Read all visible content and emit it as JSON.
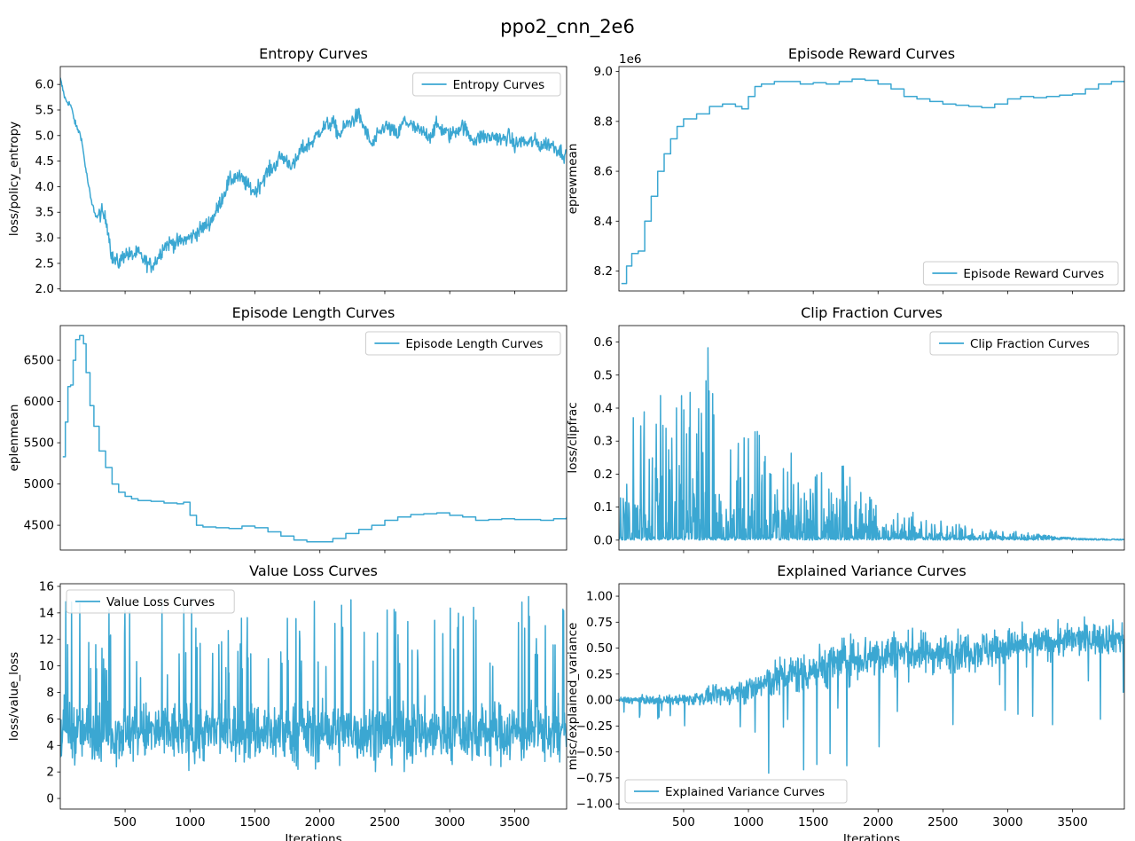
{
  "figure": {
    "suptitle": "ppo2_cnn_2e6"
  },
  "colors": {
    "series": "#3ba7d2",
    "axes": "#000000",
    "legend_border": "#cccccc",
    "background": "#ffffff"
  },
  "chart_data": [
    {
      "type": "line",
      "title": "Entropy Curves",
      "xlabel": "",
      "ylabel": "loss/policy_entropy",
      "xlim": [
        1,
        3900
      ],
      "ylim": [
        1.96,
        6.35
      ],
      "yticks": [
        2.0,
        2.5,
        3.0,
        3.5,
        4.0,
        4.5,
        5.0,
        5.5,
        6.0
      ],
      "ytick_labels": [
        "2.0",
        "2.5",
        "3.0",
        "3.5",
        "4.0",
        "4.5",
        "5.0",
        "5.5",
        "6.0"
      ],
      "xticks": [
        500,
        1000,
        1500,
        2000,
        2500,
        3000,
        3500
      ],
      "show_xtick_labels": false,
      "legend": {
        "text": "Entropy Curves",
        "position": "upper right"
      },
      "series": [
        {
          "name": "Entropy Curves",
          "x": [
            1,
            40,
            80,
            120,
            160,
            200,
            240,
            280,
            320,
            360,
            400,
            450,
            500,
            550,
            600,
            650,
            700,
            750,
            800,
            850,
            900,
            950,
            1000,
            1050,
            1100,
            1150,
            1200,
            1250,
            1300,
            1350,
            1400,
            1450,
            1500,
            1550,
            1600,
            1650,
            1700,
            1750,
            1800,
            1850,
            1900,
            1950,
            2000,
            2050,
            2100,
            2150,
            2200,
            2250,
            2300,
            2350,
            2400,
            2450,
            2500,
            2550,
            2600,
            2650,
            2700,
            2750,
            2800,
            2850,
            2900,
            2950,
            3000,
            3050,
            3100,
            3150,
            3200,
            3250,
            3300,
            3350,
            3400,
            3450,
            3500,
            3550,
            3600,
            3650,
            3700,
            3750,
            3800,
            3850,
            3900
          ],
          "y": [
            6.1,
            5.7,
            5.6,
            5.2,
            5.0,
            4.3,
            3.7,
            3.4,
            3.5,
            3.3,
            2.6,
            2.5,
            2.7,
            2.65,
            2.7,
            2.55,
            2.45,
            2.6,
            2.85,
            2.9,
            2.9,
            2.95,
            3.0,
            3.1,
            3.2,
            3.3,
            3.5,
            3.8,
            4.1,
            4.2,
            4.15,
            4.0,
            3.9,
            4.1,
            4.3,
            4.4,
            4.6,
            4.5,
            4.4,
            4.7,
            4.8,
            4.9,
            5.1,
            5.2,
            5.25,
            5.0,
            5.2,
            5.3,
            5.4,
            5.1,
            4.8,
            5.0,
            5.2,
            5.1,
            5.0,
            5.3,
            5.2,
            5.1,
            5.05,
            5.0,
            5.2,
            5.1,
            5.0,
            5.1,
            5.2,
            5.0,
            4.9,
            5.0,
            4.95,
            5.0,
            4.9,
            5.0,
            4.8,
            4.9,
            4.85,
            4.9,
            4.8,
            4.85,
            4.8,
            4.7,
            4.6
          ],
          "noise": 0.3
        }
      ]
    },
    {
      "type": "line",
      "title": "Episode Reward Curves",
      "xlabel": "",
      "ylabel": "eprewmean",
      "y_offset_label": "1e6",
      "xlim": [
        1,
        3900
      ],
      "ylim": [
        8.12,
        9.02
      ],
      "yticks": [
        8.2,
        8.4,
        8.6,
        8.8,
        9.0
      ],
      "ytick_labels": [
        "8.2",
        "8.4",
        "8.6",
        "8.8",
        "9.0"
      ],
      "xticks": [
        500,
        1000,
        1500,
        2000,
        2500,
        3000,
        3500
      ],
      "show_xtick_labels": false,
      "legend": {
        "text": "Episode Reward Curves",
        "position": "lower right"
      },
      "series": [
        {
          "name": "Episode Reward Curves",
          "x": [
            20,
            60,
            100,
            150,
            200,
            250,
            300,
            350,
            400,
            450,
            500,
            600,
            700,
            800,
            900,
            950,
            1000,
            1050,
            1100,
            1200,
            1300,
            1400,
            1500,
            1600,
            1700,
            1800,
            1900,
            2000,
            2100,
            2200,
            2300,
            2400,
            2500,
            2600,
            2700,
            2800,
            2900,
            3000,
            3100,
            3200,
            3300,
            3400,
            3500,
            3600,
            3700,
            3800,
            3900
          ],
          "y": [
            8.15,
            8.22,
            8.27,
            8.28,
            8.4,
            8.5,
            8.6,
            8.67,
            8.73,
            8.78,
            8.81,
            8.83,
            8.86,
            8.87,
            8.86,
            8.85,
            8.9,
            8.94,
            8.95,
            8.96,
            8.96,
            8.95,
            8.955,
            8.95,
            8.96,
            8.97,
            8.965,
            8.95,
            8.93,
            8.9,
            8.89,
            8.88,
            8.87,
            8.865,
            8.86,
            8.855,
            8.87,
            8.89,
            8.9,
            8.895,
            8.9,
            8.905,
            8.91,
            8.93,
            8.95,
            8.96,
            8.96
          ],
          "step": true
        }
      ]
    },
    {
      "type": "line",
      "title": "Episode Length Curves",
      "xlabel": "",
      "ylabel": "eplenmean",
      "xlim": [
        1,
        3900
      ],
      "ylim": [
        4200,
        6920
      ],
      "yticks": [
        4500,
        5000,
        5500,
        6000,
        6500
      ],
      "ytick_labels": [
        "4500",
        "5000",
        "5500",
        "6000",
        "6500"
      ],
      "xticks": [
        500,
        1000,
        1500,
        2000,
        2500,
        3000,
        3500
      ],
      "show_xtick_labels": false,
      "legend": {
        "text": "Episode Length Curves",
        "position": "upper right"
      },
      "series": [
        {
          "name": "Episode Length Curves",
          "x": [
            20,
            40,
            60,
            80,
            100,
            120,
            150,
            180,
            200,
            230,
            260,
            300,
            350,
            400,
            450,
            500,
            550,
            600,
            700,
            800,
            900,
            950,
            1000,
            1050,
            1100,
            1200,
            1300,
            1400,
            1500,
            1600,
            1700,
            1800,
            1900,
            2000,
            2100,
            2200,
            2300,
            2400,
            2500,
            2600,
            2700,
            2800,
            2900,
            3000,
            3100,
            3200,
            3300,
            3400,
            3500,
            3600,
            3700,
            3800,
            3900
          ],
          "y": [
            5330,
            5750,
            6180,
            6200,
            6500,
            6750,
            6800,
            6700,
            6350,
            5950,
            5700,
            5400,
            5200,
            5000,
            4900,
            4850,
            4820,
            4800,
            4790,
            4770,
            4760,
            4780,
            4620,
            4500,
            4480,
            4470,
            4460,
            4490,
            4470,
            4420,
            4370,
            4320,
            4300,
            4300,
            4340,
            4400,
            4450,
            4500,
            4560,
            4600,
            4630,
            4640,
            4650,
            4620,
            4600,
            4560,
            4570,
            4580,
            4570,
            4570,
            4560,
            4580,
            4600
          ],
          "step": true
        }
      ]
    },
    {
      "type": "line",
      "title": "Clip Fraction Curves",
      "xlabel": "",
      "ylabel": "loss/clipfrac",
      "xlim": [
        1,
        3900
      ],
      "ylim": [
        -0.03,
        0.65
      ],
      "yticks": [
        0.0,
        0.1,
        0.2,
        0.3,
        0.4,
        0.5,
        0.6
      ],
      "ytick_labels": [
        "0.0",
        "0.1",
        "0.2",
        "0.3",
        "0.4",
        "0.5",
        "0.6"
      ],
      "xticks": [
        500,
        1000,
        1500,
        2000,
        2500,
        3000,
        3500
      ],
      "show_xtick_labels": false,
      "legend": {
        "text": "Clip Fraction Curves",
        "position": "upper right"
      },
      "series": [
        {
          "name": "Clip Fraction Curves",
          "envelope_x": [
            1,
            100,
            200,
            300,
            400,
            500,
            600,
            700,
            800,
            900,
            1000,
            1100,
            1200,
            1300,
            1400,
            1500,
            1600,
            1700,
            1800,
            1900,
            2000,
            2200,
            2400,
            2600,
            2800,
            3000,
            3200,
            3400,
            3600,
            3900
          ],
          "envelope_y": [
            0.15,
            0.38,
            0.4,
            0.45,
            0.5,
            0.48,
            0.45,
            0.62,
            0.35,
            0.3,
            0.48,
            0.3,
            0.25,
            0.3,
            0.2,
            0.2,
            0.22,
            0.27,
            0.18,
            0.15,
            0.12,
            0.1,
            0.07,
            0.05,
            0.04,
            0.03,
            0.02,
            0.01,
            0.005,
            0.003
          ]
        }
      ]
    },
    {
      "type": "line",
      "title": "Value Loss Curves",
      "xlabel": "Iterations",
      "ylabel": "loss/value_loss",
      "xlim": [
        1,
        3900
      ],
      "ylim": [
        -0.8,
        16.2
      ],
      "yticks": [
        0,
        2,
        4,
        6,
        8,
        10,
        12,
        14,
        16
      ],
      "ytick_labels": [
        "0",
        "2",
        "4",
        "6",
        "8",
        "10",
        "12",
        "14",
        "16"
      ],
      "xticks": [
        500,
        1000,
        1500,
        2000,
        2500,
        3000,
        3500
      ],
      "xtick_labels": [
        "500",
        "1000",
        "1500",
        "2000",
        "2500",
        "3000",
        "3500"
      ],
      "show_xtick_labels": true,
      "legend": {
        "text": "Value Loss Curves",
        "position": "upper left"
      },
      "series": [
        {
          "name": "Value Loss Curves",
          "base": 5.0,
          "low": 0.2,
          "high": 15.4
        }
      ]
    },
    {
      "type": "line",
      "title": "Explained Variance Curves",
      "xlabel": "Iterations",
      "ylabel": "misc/explained_variance",
      "xlim": [
        1,
        3900
      ],
      "ylim": [
        -1.05,
        1.12
      ],
      "yticks": [
        -1.0,
        -0.75,
        -0.5,
        -0.25,
        0.0,
        0.25,
        0.5,
        0.75,
        1.0
      ],
      "ytick_labels": [
        "−1.00",
        "−0.75",
        "−0.50",
        "−0.25",
        "0.00",
        "0.25",
        "0.50",
        "0.75",
        "1.00"
      ],
      "xticks": [
        500,
        1000,
        1500,
        2000,
        2500,
        3000,
        3500
      ],
      "xtick_labels": [
        "500",
        "1000",
        "1500",
        "2000",
        "2500",
        "3000",
        "3500"
      ],
      "show_xtick_labels": true,
      "legend": {
        "text": "Explained Variance Curves",
        "position": "lower left"
      },
      "series": [
        {
          "name": "Explained Variance Curves",
          "mean_x": [
            1,
            500,
            800,
            1000,
            1200,
            1500,
            1800,
            2100,
            2500,
            2900,
            3300,
            3700,
            3900
          ],
          "mean_y": [
            0.0,
            0.0,
            0.05,
            0.1,
            0.2,
            0.3,
            0.4,
            0.45,
            0.45,
            0.5,
            0.55,
            0.6,
            0.6
          ],
          "spread_y": [
            0.05,
            0.08,
            0.15,
            0.2,
            0.3,
            0.35,
            0.35,
            0.35,
            0.3,
            0.3,
            0.25,
            0.25,
            0.25
          ]
        }
      ]
    }
  ]
}
